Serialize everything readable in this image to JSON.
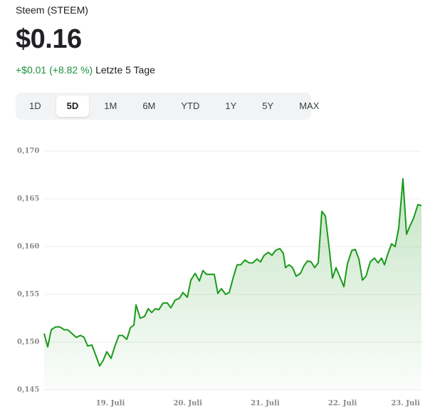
{
  "header": {
    "name": "Steem (STEEM)",
    "price": "$0.16",
    "change": "+$0.01",
    "change_pct": "(+8.82 %)",
    "period": "Letzte 5 Tage"
  },
  "tabs": [
    {
      "label": "1D",
      "selected": false
    },
    {
      "label": "5D",
      "selected": true
    },
    {
      "label": "1M",
      "selected": false
    },
    {
      "label": "6M",
      "selected": false
    },
    {
      "label": "YTD",
      "selected": false
    },
    {
      "label": "1Y",
      "selected": false
    },
    {
      "label": "5Y",
      "selected": false
    },
    {
      "label": "MAX",
      "selected": false
    }
  ],
  "chart_data": {
    "type": "line",
    "color": "#1a9a1a",
    "area": true,
    "grid": true,
    "xlim": [
      18.144,
      23.02
    ],
    "xticks": [
      {
        "value": 19,
        "label": "19. Juli"
      },
      {
        "value": 20,
        "label": "20. Juli"
      },
      {
        "value": 21,
        "label": "21. Juli"
      },
      {
        "value": 22,
        "label": "22. Juli"
      },
      {
        "value": 23,
        "label": "23. Juli"
      }
    ],
    "ylim": [
      0.145,
      0.17
    ],
    "yticks": [
      {
        "value": 0.145,
        "label": "0,145"
      },
      {
        "value": 0.15,
        "label": "0,150"
      },
      {
        "value": 0.155,
        "label": "0,155"
      },
      {
        "value": 0.16,
        "label": "0,160"
      },
      {
        "value": 0.165,
        "label": "0,165"
      },
      {
        "value": 0.17,
        "label": "0,170"
      }
    ],
    "x": [
      18.144,
      18.19,
      18.236,
      18.292,
      18.347,
      18.402,
      18.448,
      18.503,
      18.558,
      18.614,
      18.66,
      18.706,
      18.761,
      18.807,
      18.862,
      18.908,
      18.954,
      19.009,
      19.055,
      19.11,
      19.156,
      19.212,
      19.258,
      19.304,
      19.331,
      19.386,
      19.442,
      19.488,
      19.534,
      19.58,
      19.626,
      19.681,
      19.736,
      19.782,
      19.837,
      19.892,
      19.938,
      19.994,
      20.04,
      20.095,
      20.15,
      20.196,
      20.242,
      20.297,
      20.343,
      20.389,
      20.435,
      20.49,
      20.536,
      20.592,
      20.638,
      20.684,
      20.739,
      20.794,
      20.84,
      20.895,
      20.941,
      20.987,
      21.042,
      21.088,
      21.134,
      21.189,
      21.235,
      21.263,
      21.309,
      21.355,
      21.401,
      21.456,
      21.502,
      21.548,
      21.594,
      21.64,
      21.686,
      21.732,
      21.778,
      21.824,
      21.87,
      21.916,
      21.962,
      22.017,
      22.063,
      22.119,
      22.165,
      22.211,
      22.257,
      22.303,
      22.358,
      22.413,
      22.459,
      22.505,
      22.542,
      22.588,
      22.634,
      22.68,
      22.726,
      22.781,
      22.827,
      22.873,
      22.919,
      22.974,
      23.02
    ],
    "values": [
      0.1509,
      0.1495,
      0.1513,
      0.1516,
      0.1516,
      0.1513,
      0.1513,
      0.1509,
      0.1505,
      0.1507,
      0.1505,
      0.1496,
      0.1497,
      0.1487,
      0.1475,
      0.1481,
      0.149,
      0.1483,
      0.1495,
      0.1507,
      0.1507,
      0.1503,
      0.1515,
      0.1518,
      0.1539,
      0.1525,
      0.1527,
      0.1535,
      0.1531,
      0.1535,
      0.1534,
      0.1541,
      0.1541,
      0.1536,
      0.1544,
      0.1546,
      0.1552,
      0.1547,
      0.1565,
      0.1572,
      0.1564,
      0.1575,
      0.1571,
      0.1571,
      0.1571,
      0.1551,
      0.1556,
      0.155,
      0.1552,
      0.1569,
      0.1581,
      0.1581,
      0.1586,
      0.1583,
      0.1583,
      0.1587,
      0.1584,
      0.1591,
      0.1594,
      0.1591,
      0.1596,
      0.1598,
      0.1593,
      0.1578,
      0.1581,
      0.1578,
      0.1569,
      0.1572,
      0.158,
      0.1585,
      0.1584,
      0.1578,
      0.1583,
      0.1637,
      0.1632,
      0.1601,
      0.1567,
      0.1578,
      0.1569,
      0.1558,
      0.1582,
      0.1596,
      0.1597,
      0.1587,
      0.1565,
      0.1569,
      0.1584,
      0.1588,
      0.1583,
      0.1588,
      0.1581,
      0.1593,
      0.1603,
      0.16,
      0.1619,
      0.1671,
      0.1613,
      0.1622,
      0.163,
      0.1644,
      0.1643
    ]
  }
}
